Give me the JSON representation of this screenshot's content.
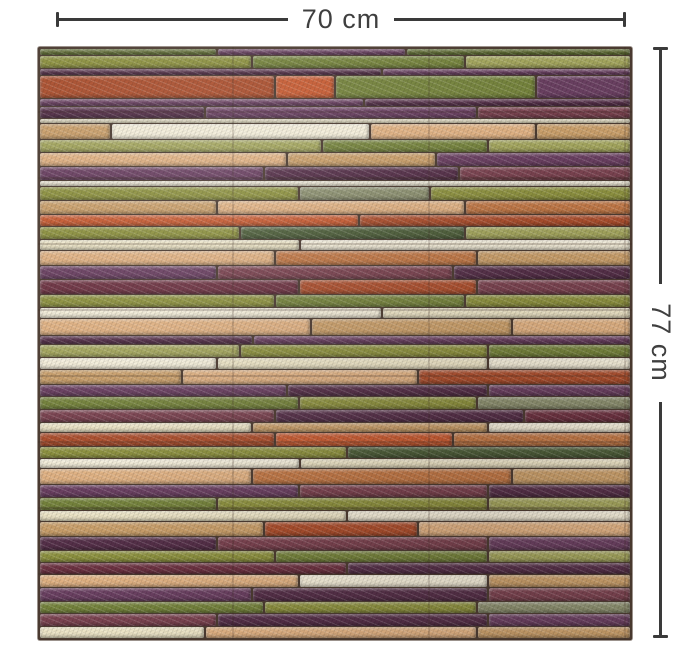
{
  "annotation": {
    "width_label": "70 cm",
    "height_label": "77 cm",
    "line_color": "#3a3a3a",
    "text_color": "#3f3f3f"
  },
  "background_color": "#ffffff",
  "panel": {
    "description": "3d-foam-stacked-stone-wall-panel",
    "groove_color": "#4a3a30",
    "palette": {
      "pl": "#6a4061",
      "pd": "#553049",
      "ma": "#7a4350",
      "wi": "#6d3342",
      "ru": "#ab4f2e",
      "fl": "#c75c33",
      "te": "#c07847",
      "pe": "#dfb183",
      "ta": "#c99f6b",
      "cr": "#ebe3c5",
      "iv": "#f2ecd8",
      "ol": "#8d9140",
      "mo": "#75833d",
      "sa": "#a3a55e",
      "gg": "#8c9070",
      "do": "#606d33",
      "dg": "#4d5e3a"
    },
    "rows": [
      {
        "h": 7,
        "s": [
          [
            "do",
            30
          ],
          [
            "pl",
            32
          ],
          [
            "do",
            38
          ]
        ]
      },
      {
        "h": 13,
        "s": [
          [
            "ol",
            36
          ],
          [
            "mo",
            36
          ],
          [
            "sa",
            28
          ]
        ]
      },
      {
        "h": 6,
        "s": [
          [
            "pd",
            58
          ],
          [
            "pl",
            42
          ]
        ]
      },
      {
        "h": 24,
        "s": [
          [
            "ru",
            40
          ],
          [
            "fl",
            10
          ],
          [
            "mo",
            34
          ],
          [
            "pl",
            16
          ]
        ]
      },
      {
        "h": 7,
        "s": [
          [
            "pl",
            55
          ],
          [
            "pd",
            45
          ]
        ]
      },
      {
        "h": 12,
        "s": [
          [
            "pd",
            28
          ],
          [
            "pl",
            46
          ],
          [
            "ma",
            26
          ]
        ]
      },
      {
        "h": 5,
        "s": [
          [
            "cr",
            100
          ]
        ]
      },
      {
        "h": 16,
        "s": [
          [
            "ta",
            12
          ],
          [
            "iv",
            44
          ],
          [
            "pe",
            28
          ],
          [
            "ta",
            16
          ]
        ]
      },
      {
        "h": 13,
        "s": [
          [
            "sa",
            48
          ],
          [
            "mo",
            28
          ],
          [
            "sa",
            24
          ]
        ]
      },
      {
        "h": 14,
        "s": [
          [
            "pe",
            42
          ],
          [
            "ta",
            25
          ],
          [
            "pl",
            33
          ]
        ]
      },
      {
        "h": 14,
        "s": [
          [
            "pl",
            38
          ],
          [
            "pd",
            33
          ],
          [
            "ma",
            29
          ]
        ]
      },
      {
        "h": 5,
        "s": [
          [
            "iv",
            100
          ]
        ]
      },
      {
        "h": 14,
        "s": [
          [
            "ol",
            44
          ],
          [
            "gg",
            22
          ],
          [
            "ol",
            34
          ]
        ]
      },
      {
        "h": 15,
        "s": [
          [
            "ta",
            30
          ],
          [
            "pe",
            42
          ],
          [
            "te",
            28
          ]
        ]
      },
      {
        "h": 11,
        "s": [
          [
            "fl",
            54
          ],
          [
            "ru",
            46
          ]
        ]
      },
      {
        "h": 14,
        "s": [
          [
            "ol",
            34
          ],
          [
            "dg",
            38
          ],
          [
            "sa",
            28
          ]
        ]
      },
      {
        "h": 10,
        "s": [
          [
            "cr",
            44
          ],
          [
            "iv",
            56
          ]
        ]
      },
      {
        "h": 15,
        "s": [
          [
            "pe",
            40
          ],
          [
            "te",
            34
          ],
          [
            "ta",
            26
          ]
        ]
      },
      {
        "h": 15,
        "s": [
          [
            "pl",
            30
          ],
          [
            "ma",
            40
          ],
          [
            "pd",
            30
          ]
        ]
      },
      {
        "h": 15,
        "s": [
          [
            "wi",
            44
          ],
          [
            "ru",
            30
          ],
          [
            "ma",
            26
          ]
        ]
      },
      {
        "h": 13,
        "s": [
          [
            "ol",
            40
          ],
          [
            "mo",
            32
          ],
          [
            "ol",
            28
          ]
        ]
      },
      {
        "h": 11,
        "s": [
          [
            "iv",
            58
          ],
          [
            "cr",
            42
          ]
        ]
      },
      {
        "h": 17,
        "s": [
          [
            "pe",
            46
          ],
          [
            "ta",
            34
          ],
          [
            "pe",
            20
          ]
        ]
      },
      {
        "h": 8,
        "s": [
          [
            "pd",
            36
          ],
          [
            "pl",
            64
          ]
        ]
      },
      {
        "h": 13,
        "s": [
          [
            "sa",
            34
          ],
          [
            "ol",
            42
          ],
          [
            "mo",
            24
          ]
        ]
      },
      {
        "h": 12,
        "s": [
          [
            "iv",
            30
          ],
          [
            "cr",
            46
          ],
          [
            "iv",
            24
          ]
        ]
      },
      {
        "h": 16,
        "s": [
          [
            "ta",
            24
          ],
          [
            "pe",
            40
          ],
          [
            "ru",
            36
          ]
        ]
      },
      {
        "h": 12,
        "s": [
          [
            "pl",
            42
          ],
          [
            "pd",
            34
          ],
          [
            "pl",
            24
          ]
        ]
      },
      {
        "h": 13,
        "s": [
          [
            "mo",
            44
          ],
          [
            "ol",
            30
          ],
          [
            "gg",
            26
          ]
        ]
      },
      {
        "h": 12,
        "s": [
          [
            "ma",
            40
          ],
          [
            "pd",
            42
          ],
          [
            "wi",
            18
          ]
        ]
      },
      {
        "h": 10,
        "s": [
          [
            "cr",
            36
          ],
          [
            "ta",
            40
          ],
          [
            "iv",
            24
          ]
        ]
      },
      {
        "h": 14,
        "s": [
          [
            "ru",
            40
          ],
          [
            "fl",
            30
          ],
          [
            "te",
            30
          ]
        ]
      },
      {
        "h": 12,
        "s": [
          [
            "ol",
            52
          ],
          [
            "dg",
            48
          ]
        ]
      },
      {
        "h": 10,
        "s": [
          [
            "iv",
            44
          ],
          [
            "cr",
            56
          ]
        ]
      },
      {
        "h": 16,
        "s": [
          [
            "pe",
            36
          ],
          [
            "te",
            44
          ],
          [
            "ta",
            20
          ]
        ]
      },
      {
        "h": 13,
        "s": [
          [
            "pl",
            44
          ],
          [
            "ma",
            32
          ],
          [
            "pd",
            24
          ]
        ]
      },
      {
        "h": 13,
        "s": [
          [
            "mo",
            30
          ],
          [
            "ol",
            46
          ],
          [
            "sa",
            24
          ]
        ]
      },
      {
        "h": 11,
        "s": [
          [
            "cr",
            52
          ],
          [
            "iv",
            48
          ]
        ]
      },
      {
        "h": 15,
        "s": [
          [
            "ta",
            38
          ],
          [
            "ru",
            26
          ],
          [
            "pe",
            36
          ]
        ]
      },
      {
        "h": 14,
        "s": [
          [
            "pd",
            30
          ],
          [
            "ma",
            46
          ],
          [
            "pl",
            24
          ]
        ]
      },
      {
        "h": 12,
        "s": [
          [
            "ol",
            40
          ],
          [
            "mo",
            36
          ],
          [
            "sa",
            24
          ]
        ]
      },
      {
        "h": 12,
        "s": [
          [
            "wi",
            52
          ],
          [
            "pd",
            48
          ]
        ]
      },
      {
        "h": 13,
        "s": [
          [
            "pe",
            44
          ],
          [
            "iv",
            32
          ],
          [
            "ta",
            24
          ]
        ]
      },
      {
        "h": 14,
        "s": [
          [
            "pl",
            36
          ],
          [
            "pd",
            40
          ],
          [
            "ma",
            24
          ]
        ]
      },
      {
        "h": 12,
        "s": [
          [
            "mo",
            38
          ],
          [
            "ol",
            36
          ],
          [
            "gg",
            26
          ]
        ]
      },
      {
        "h": 13,
        "s": [
          [
            "ma",
            30
          ],
          [
            "pd",
            46
          ],
          [
            "pl",
            24
          ]
        ]
      },
      {
        "h": 12,
        "s": [
          [
            "cr",
            28
          ],
          [
            "pe",
            46
          ],
          [
            "ta",
            26
          ]
        ]
      }
    ]
  }
}
